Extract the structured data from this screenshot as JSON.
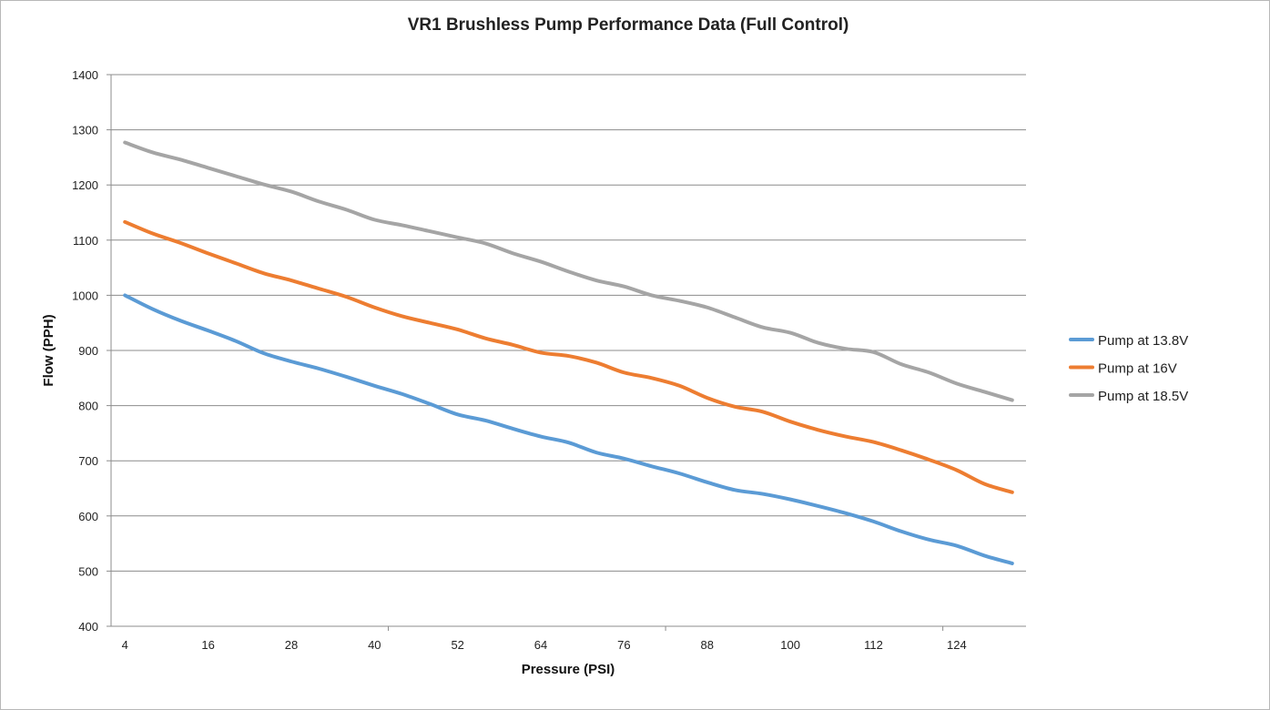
{
  "chart_data": {
    "type": "line",
    "title": "VR1 Brushless Pump Performance Data (Full Control)",
    "xlabel": "Pressure (PSI)",
    "ylabel": "Flow (PPH)",
    "ylim": [
      400,
      1400
    ],
    "y_ticks": [
      400,
      500,
      600,
      700,
      800,
      900,
      1000,
      1100,
      1200,
      1300,
      1400
    ],
    "x": [
      4,
      8,
      12,
      16,
      20,
      24,
      28,
      32,
      36,
      40,
      44,
      48,
      52,
      56,
      60,
      64,
      68,
      72,
      76,
      80,
      84,
      88,
      92,
      96,
      100,
      104,
      108,
      112,
      116,
      120,
      124,
      128,
      132
    ],
    "x_tick_labels": [
      "4",
      "16",
      "28",
      "40",
      "52",
      "64",
      "76",
      "88",
      "100",
      "112",
      "124"
    ],
    "grid": "horizontal",
    "legend_position": "right",
    "smoothed": true,
    "series": [
      {
        "name": "Pump at 13.8V",
        "color": "#5B9BD5",
        "values": [
          1000,
          975,
          954,
          936,
          917,
          895,
          880,
          867,
          852,
          836,
          821,
          803,
          784,
          773,
          758,
          744,
          733,
          715,
          704,
          690,
          677,
          661,
          647,
          640,
          630,
          618,
          605,
          590,
          572,
          557,
          546,
          528,
          514
        ]
      },
      {
        "name": "Pump at 16V",
        "color": "#ED7D31",
        "values": [
          1133,
          1112,
          1095,
          1076,
          1058,
          1040,
          1027,
          1012,
          997,
          978,
          962,
          950,
          938,
          922,
          910,
          896,
          890,
          878,
          860,
          850,
          836,
          814,
          798,
          789,
          771,
          756,
          744,
          734,
          719,
          702,
          683,
          658,
          643
        ]
      },
      {
        "name": "Pump at 18.5V",
        "color": "#A5A5A5",
        "values": [
          1277,
          1259,
          1246,
          1231,
          1216,
          1201,
          1188,
          1170,
          1155,
          1137,
          1127,
          1116,
          1105,
          1094,
          1076,
          1061,
          1043,
          1027,
          1016,
          1000,
          990,
          978,
          960,
          942,
          932,
          914,
          903,
          897,
          875,
          860,
          840,
          825,
          810
        ]
      }
    ]
  }
}
